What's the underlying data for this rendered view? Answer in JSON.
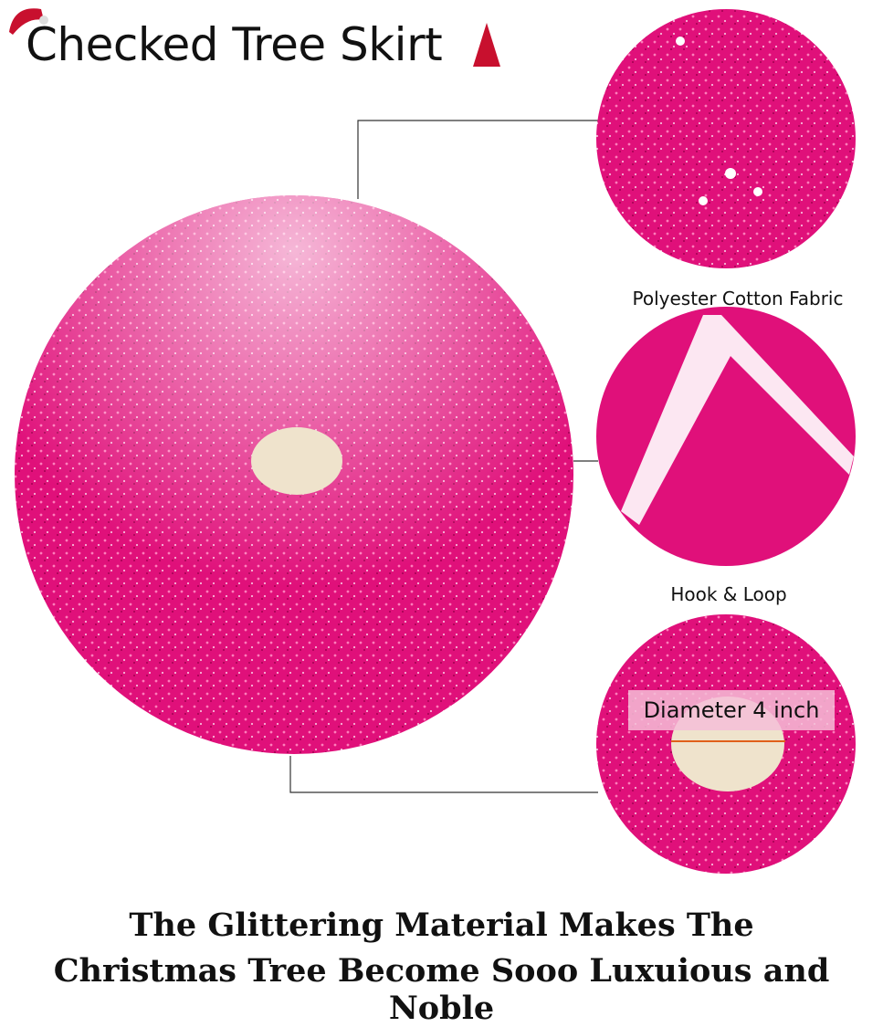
{
  "title": "Checked Tree Skirt",
  "details": [
    {
      "label": "Polyester Cotton Fabric"
    },
    {
      "label": "Hook & Loop"
    },
    {
      "label": "Diameter 4  inch"
    }
  ],
  "caption": {
    "line1": "The Glittering Material Makes The",
    "line2": "Christmas Tree Become Sooo Luxuious and Noble"
  },
  "colors": {
    "fabric": "#e0107a",
    "hole": "#efe3cc",
    "accent": "#c8102e"
  }
}
